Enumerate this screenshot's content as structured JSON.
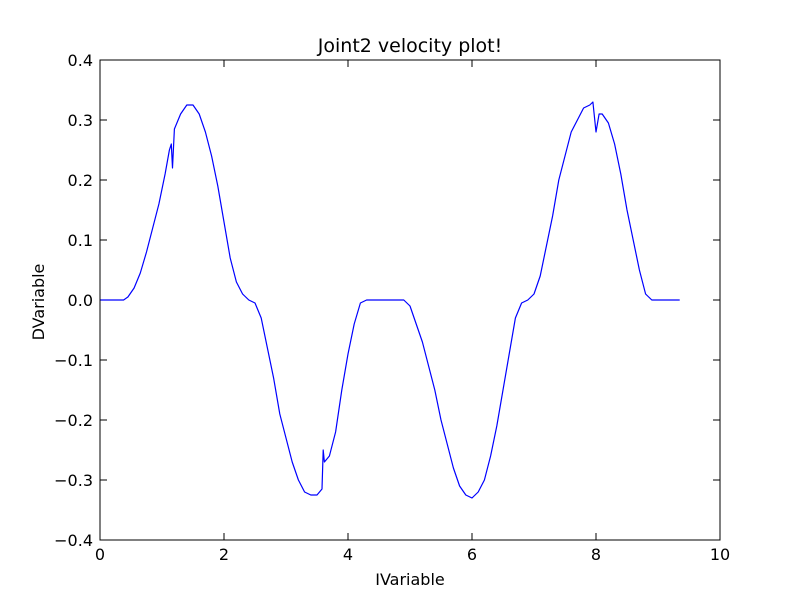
{
  "chart_data": {
    "type": "line",
    "title": "Joint2 velocity plot!",
    "xlabel": "IVariable",
    "ylabel": "DVariable",
    "xlim": [
      0,
      10
    ],
    "ylim": [
      -0.4,
      0.4
    ],
    "xticks": [
      0,
      2,
      4,
      6,
      8,
      10
    ],
    "xtick_labels": [
      "0",
      "2",
      "4",
      "6",
      "8",
      "10"
    ],
    "yticks": [
      -0.4,
      -0.3,
      -0.2,
      -0.1,
      0.0,
      0.1,
      0.2,
      0.3,
      0.4
    ],
    "ytick_labels": [
      "−0.4",
      "−0.3",
      "−0.2",
      "−0.1",
      "0.0",
      "0.1",
      "0.2",
      "0.3",
      "0.4"
    ],
    "grid": false,
    "legend": "none",
    "series": [
      {
        "color": "#0000ff",
        "points": [
          [
            0.0,
            0.0
          ],
          [
            0.38,
            0.0
          ],
          [
            0.45,
            0.005
          ],
          [
            0.55,
            0.02
          ],
          [
            0.65,
            0.045
          ],
          [
            0.75,
            0.08
          ],
          [
            0.85,
            0.12
          ],
          [
            0.95,
            0.16
          ],
          [
            1.05,
            0.21
          ],
          [
            1.12,
            0.25
          ],
          [
            1.15,
            0.26
          ],
          [
            1.17,
            0.22
          ],
          [
            1.2,
            0.285
          ],
          [
            1.3,
            0.31
          ],
          [
            1.4,
            0.325
          ],
          [
            1.5,
            0.325
          ],
          [
            1.6,
            0.31
          ],
          [
            1.7,
            0.28
          ],
          [
            1.8,
            0.24
          ],
          [
            1.9,
            0.19
          ],
          [
            2.0,
            0.13
          ],
          [
            2.1,
            0.07
          ],
          [
            2.2,
            0.03
          ],
          [
            2.3,
            0.01
          ],
          [
            2.4,
            0.0
          ],
          [
            2.5,
            -0.005
          ],
          [
            2.6,
            -0.03
          ],
          [
            2.7,
            -0.08
          ],
          [
            2.8,
            -0.13
          ],
          [
            2.9,
            -0.19
          ],
          [
            3.0,
            -0.23
          ],
          [
            3.1,
            -0.27
          ],
          [
            3.2,
            -0.3
          ],
          [
            3.3,
            -0.32
          ],
          [
            3.4,
            -0.325
          ],
          [
            3.5,
            -0.325
          ],
          [
            3.58,
            -0.315
          ],
          [
            3.6,
            -0.25
          ],
          [
            3.62,
            -0.27
          ],
          [
            3.7,
            -0.26
          ],
          [
            3.8,
            -0.22
          ],
          [
            3.9,
            -0.15
          ],
          [
            4.0,
            -0.09
          ],
          [
            4.1,
            -0.04
          ],
          [
            4.2,
            -0.005
          ],
          [
            4.3,
            0.0
          ],
          [
            4.9,
            0.0
          ],
          [
            5.0,
            -0.01
          ],
          [
            5.1,
            -0.04
          ],
          [
            5.2,
            -0.07
          ],
          [
            5.3,
            -0.11
          ],
          [
            5.4,
            -0.15
          ],
          [
            5.5,
            -0.2
          ],
          [
            5.6,
            -0.24
          ],
          [
            5.7,
            -0.28
          ],
          [
            5.8,
            -0.31
          ],
          [
            5.9,
            -0.325
          ],
          [
            6.0,
            -0.33
          ],
          [
            6.1,
            -0.32
          ],
          [
            6.2,
            -0.3
          ],
          [
            6.3,
            -0.26
          ],
          [
            6.4,
            -0.21
          ],
          [
            6.5,
            -0.15
          ],
          [
            6.6,
            -0.09
          ],
          [
            6.7,
            -0.03
          ],
          [
            6.8,
            -0.005
          ],
          [
            6.9,
            0.0
          ],
          [
            7.0,
            0.01
          ],
          [
            7.1,
            0.04
          ],
          [
            7.2,
            0.09
          ],
          [
            7.3,
            0.14
          ],
          [
            7.4,
            0.2
          ],
          [
            7.5,
            0.24
          ],
          [
            7.6,
            0.28
          ],
          [
            7.7,
            0.3
          ],
          [
            7.8,
            0.32
          ],
          [
            7.9,
            0.325
          ],
          [
            7.95,
            0.33
          ],
          [
            8.0,
            0.28
          ],
          [
            8.05,
            0.31
          ],
          [
            8.1,
            0.31
          ],
          [
            8.2,
            0.295
          ],
          [
            8.3,
            0.26
          ],
          [
            8.4,
            0.21
          ],
          [
            8.5,
            0.15
          ],
          [
            8.6,
            0.1
          ],
          [
            8.7,
            0.05
          ],
          [
            8.8,
            0.01
          ],
          [
            8.9,
            0.0
          ],
          [
            9.35,
            0.0
          ]
        ]
      }
    ]
  }
}
